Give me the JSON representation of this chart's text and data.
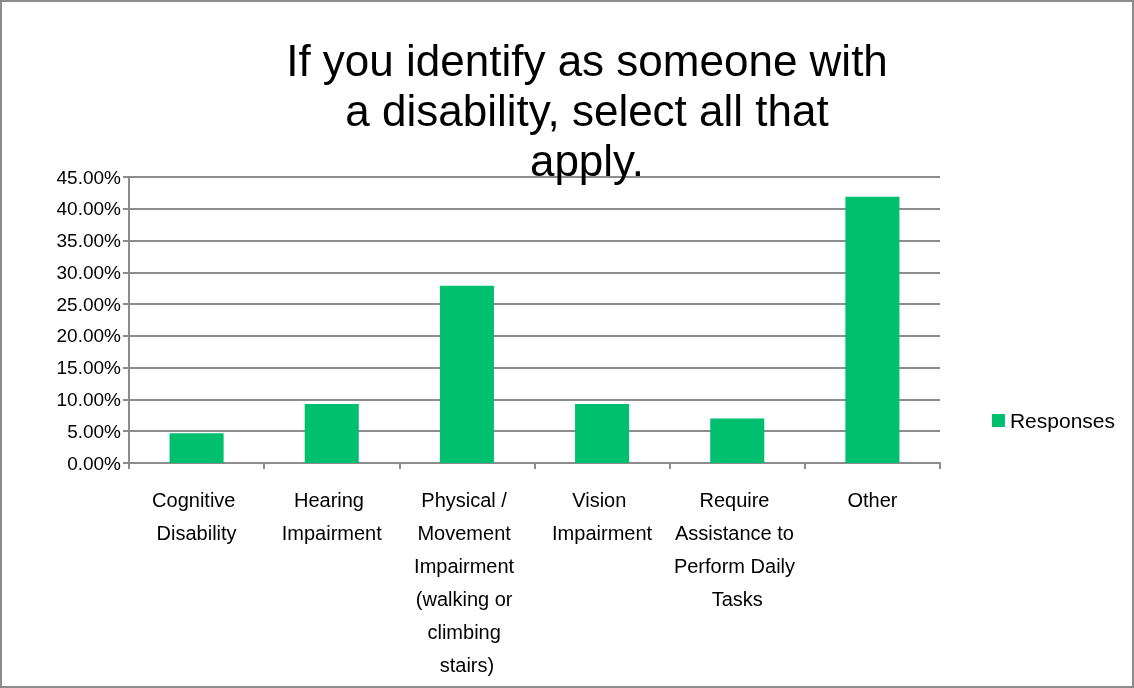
{
  "chart_data": {
    "type": "bar",
    "title": "If you identify as someone with a disability, select all that apply.",
    "categories": [
      "Cognitive Disability",
      "Hearing Impairment",
      "Physical / Movement Impairment (walking or climbing stairs)",
      "Vision Impairment",
      "Require Assistance to Perform Daily Tasks",
      "Other"
    ],
    "series": [
      {
        "name": "Responses",
        "color": "#00bf6f",
        "values": [
          4.7,
          9.3,
          27.9,
          9.3,
          7.0,
          41.9
        ]
      }
    ],
    "ylim": [
      0,
      45
    ],
    "yticks": [
      {
        "value": 0,
        "label": "0.00%"
      },
      {
        "value": 5,
        "label": "5.00%"
      },
      {
        "value": 10,
        "label": "10.00%"
      },
      {
        "value": 15,
        "label": "15.00%"
      },
      {
        "value": 20,
        "label": "20.00%"
      },
      {
        "value": 25,
        "label": "25.00%"
      },
      {
        "value": 30,
        "label": "30.00%"
      },
      {
        "value": 35,
        "label": "35.00%"
      },
      {
        "value": 40,
        "label": "40.00%"
      },
      {
        "value": 45,
        "label": "45.00%"
      }
    ],
    "grid": "y",
    "legend": "right"
  }
}
